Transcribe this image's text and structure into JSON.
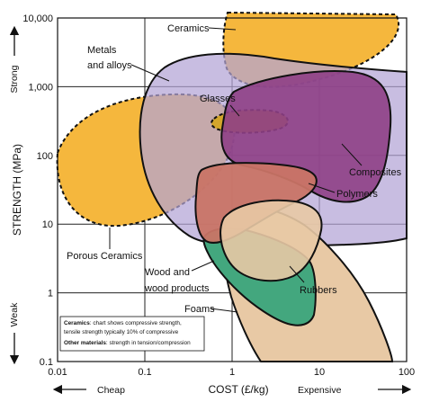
{
  "chart_data": {
    "type": "area",
    "title": "",
    "xlabel": "COST (£/kg)",
    "ylabel": "STRENGTH (MPa)",
    "xscale": "log",
    "yscale": "log",
    "xlim": [
      0.01,
      100
    ],
    "ylim": [
      0.1,
      10000
    ],
    "x_ticks": [
      "0.01",
      "0.1",
      "1",
      "10",
      "100"
    ],
    "y_ticks": [
      "0.1",
      "1",
      "10",
      "100",
      "1,000",
      "10,000"
    ],
    "grid": true,
    "x_extremes": {
      "low": "Cheap",
      "high": "Expensive"
    },
    "y_extremes": {
      "low": "Weak",
      "high": "Strong"
    },
    "regions": [
      {
        "label": "Porous Ceramics",
        "color": "#f5b73d",
        "outline": "dashed",
        "x_range": [
          0.01,
          0.6
        ],
        "y_range": [
          8,
          500
        ]
      },
      {
        "label": "Ceramics",
        "color": "#f5b73d",
        "outline": "dashed",
        "x_range": [
          0.5,
          100
        ],
        "y_range": [
          200,
          10000
        ]
      },
      {
        "label": "Metals and alloys",
        "color": "#b3a3d6",
        "outline": "solid",
        "x_range": [
          0.1,
          100
        ],
        "y_range": [
          5,
          2500
        ]
      },
      {
        "label": "Glasses",
        "color": "#d3a62b",
        "outline": "dashed",
        "x_range": [
          0.8,
          6
        ],
        "y_range": [
          200,
          450
        ]
      },
      {
        "label": "Composites",
        "color": "#8e3f86",
        "outline": "solid",
        "x_range": [
          0.9,
          40
        ],
        "y_range": [
          25,
          1300
        ]
      },
      {
        "label": "Polymers",
        "color": "#c97466",
        "outline": "solid",
        "x_range": [
          0.6,
          10
        ],
        "y_range": [
          5,
          85
        ]
      },
      {
        "label": "Wood and wood products",
        "color": "#43a77e",
        "outline": "solid",
        "x_range": [
          0.5,
          10
        ],
        "y_range": [
          0.6,
          100
        ]
      },
      {
        "label": "Rubbers",
        "color": "#e8c9a5",
        "outline": "solid",
        "x_range": [
          0.9,
          10
        ],
        "y_range": [
          0.8,
          40
        ]
      },
      {
        "label": "Foams",
        "color": "#e8c9a5",
        "outline": "solid",
        "x_range": [
          0.5,
          80
        ],
        "y_range": [
          0.1,
          30
        ]
      }
    ],
    "note": [
      {
        "bold": "Ceramics",
        "text": ": chart shows compressive strength,"
      },
      {
        "bold": "",
        "text": "tensile strength typically 10% of compressive"
      },
      {
        "bold": "Other materials",
        "text": ": strength in tension/compression"
      }
    ]
  }
}
